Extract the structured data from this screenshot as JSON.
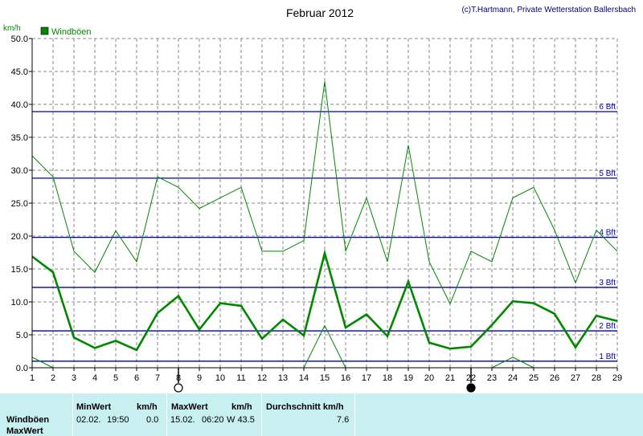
{
  "title": "Februar 2012",
  "copyright": "(c)T.Hartmann, Private Wetterstation Ballersbach",
  "y_unit": "km/h",
  "legend_label": "Windböen",
  "colors": {
    "series": "#008800",
    "beaufort": "#0000aa",
    "grid": "#888888",
    "panel": "#c8f0f0"
  },
  "chart_data": {
    "type": "line",
    "title": "Februar 2012",
    "ylabel": "km/h",
    "ylim": [
      0,
      50
    ],
    "xlim": [
      1,
      29
    ],
    "y_ticks": [
      "0.0",
      "5.0",
      "10.0",
      "15.0",
      "20.0",
      "25.0",
      "30.0",
      "35.0",
      "40.0",
      "45.0",
      "50.0"
    ],
    "x_ticks": [
      "1",
      "2",
      "3",
      "4",
      "5",
      "6",
      "7",
      "8",
      "9",
      "10",
      "11",
      "12",
      "13",
      "14",
      "15",
      "16",
      "17",
      "18",
      "19",
      "20",
      "21",
      "22",
      "23",
      "24",
      "25",
      "26",
      "27",
      "28",
      "29"
    ],
    "grid": true,
    "legend_position": "top-left",
    "series": [
      {
        "name": "Windböen",
        "kind": "max",
        "x": [
          1,
          2,
          3,
          4,
          5,
          6,
          7,
          8,
          9,
          10,
          11,
          12,
          13,
          14,
          15,
          16,
          17,
          18,
          19,
          20,
          21,
          22,
          23,
          24,
          25,
          26,
          27,
          28,
          29
        ],
        "values": [
          32.2,
          29.0,
          17.7,
          14.5,
          20.8,
          16.1,
          29.0,
          27.4,
          24.2,
          25.8,
          27.4,
          17.7,
          17.7,
          19.3,
          43.5,
          17.7,
          25.8,
          16.1,
          33.8,
          16.1,
          9.7,
          17.7,
          16.1,
          25.8,
          27.4,
          20.9,
          12.9,
          20.9,
          17.7
        ]
      },
      {
        "kind": "avg",
        "x": [
          1,
          2,
          3,
          4,
          5,
          6,
          7,
          8,
          9,
          10,
          11,
          12,
          13,
          14,
          15,
          16,
          17,
          18,
          19,
          20,
          21,
          22,
          23,
          24,
          25,
          26,
          27,
          28,
          29
        ],
        "values": [
          16.9,
          14.5,
          4.6,
          3.0,
          4.1,
          2.7,
          8.3,
          10.9,
          5.8,
          9.8,
          9.4,
          4.4,
          7.3,
          4.9,
          17.4,
          6.1,
          8.1,
          4.8,
          13.1,
          3.8,
          2.9,
          3.2,
          6.5,
          10.1,
          9.8,
          8.2,
          3.1,
          7.9,
          7.1
        ]
      },
      {
        "kind": "min",
        "x": [
          1,
          2,
          14,
          15,
          16,
          23,
          24,
          25
        ],
        "values": [
          1.6,
          0.0,
          0.0,
          6.4,
          0.0,
          0.0,
          1.6,
          0.0
        ]
      }
    ],
    "beaufort_lines": [
      {
        "label": "1 Bft",
        "value": 1.0
      },
      {
        "label": "2 Bft",
        "value": 5.6
      },
      {
        "label": "3 Bft",
        "value": 12.2
      },
      {
        "label": "4 Bft",
        "value": 19.8
      },
      {
        "label": "5 Bft",
        "value": 28.8
      },
      {
        "label": "6 Bft",
        "value": 38.9
      }
    ],
    "moon_phases": [
      {
        "day": 8,
        "phase": "full"
      },
      {
        "day": 22,
        "phase": "new"
      }
    ]
  },
  "stats": {
    "row_labels": [
      "Windböen",
      "MaxWert"
    ],
    "min_header": "MinWert",
    "min_unit": "km/h",
    "min_date": "02.02.",
    "min_time": "19:50",
    "min_value": "0.0",
    "max_header": "MaxWert",
    "max_unit": "km/h",
    "max_date": "15.02.",
    "max_time": "06:20",
    "max_value": "W 43.5",
    "avg_header": "Durchschnitt km/h",
    "avg_value": "7.6"
  }
}
